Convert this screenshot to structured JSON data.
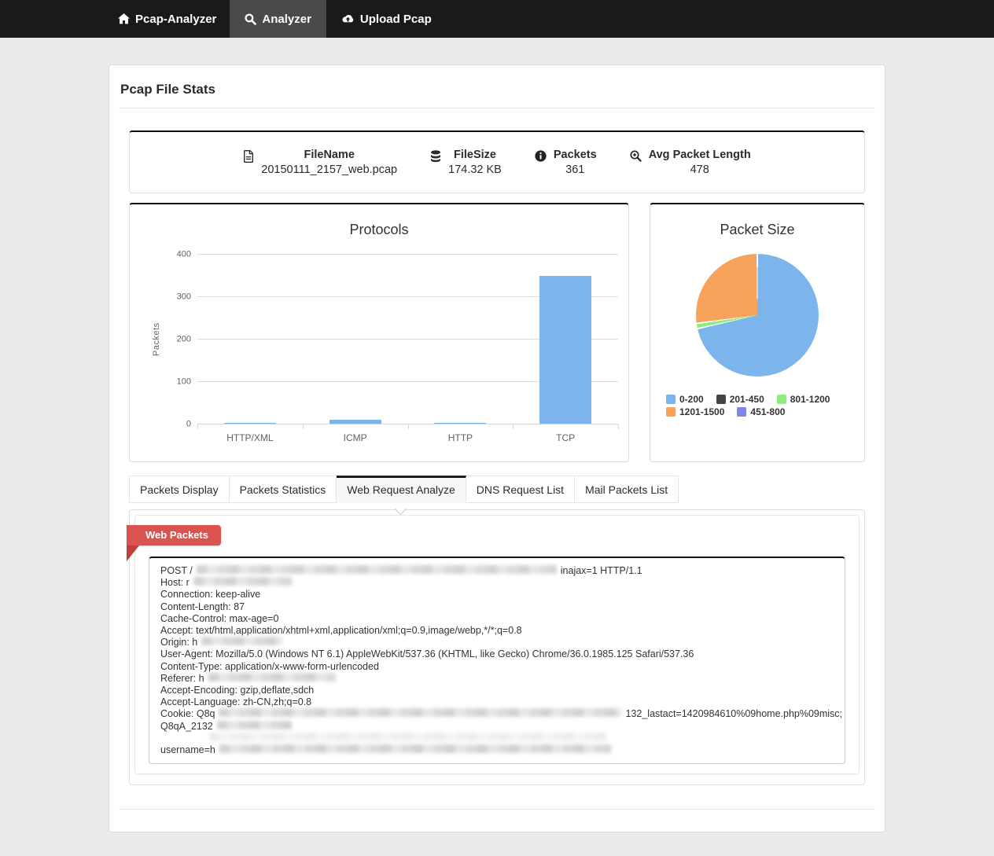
{
  "navbar": {
    "brand": "Pcap-Analyzer",
    "items": [
      {
        "label": "Analyzer",
        "icon": "search-icon",
        "active": true
      },
      {
        "label": "Upload Pcap",
        "icon": "cloud-upload-icon",
        "active": false
      }
    ]
  },
  "page": {
    "title": "Pcap File Stats"
  },
  "file_stats": [
    {
      "icon": "file-icon",
      "label": "FileName",
      "value": "20150111_2157_web.pcap"
    },
    {
      "icon": "database-icon",
      "label": "FileSize",
      "value": "174.32 KB"
    },
    {
      "icon": "info-icon",
      "label": "Packets",
      "value": "361"
    },
    {
      "icon": "zoom-in-icon",
      "label": "Avg Packet Length",
      "value": "478"
    }
  ],
  "chart_data": [
    {
      "type": "bar",
      "title": "Protocols",
      "categories": [
        "HTTP/XML",
        "ICMP",
        "HTTP",
        "TCP"
      ],
      "values": [
        1,
        9,
        2,
        349
      ],
      "xlabel": "",
      "ylabel": "Packets",
      "ylim": [
        0,
        400
      ],
      "yticks": [
        0,
        100,
        200,
        300,
        400
      ],
      "grid": true,
      "legend": false,
      "bar_color": "#7cb5ec"
    },
    {
      "type": "pie",
      "title": "Packet Size",
      "labels": [
        "0-200",
        "201-450",
        "801-1200",
        "1201-1500",
        "451-800"
      ],
      "values": [
        258,
        0,
        5,
        98,
        0
      ],
      "colors": [
        "#7cb5ec",
        "#434348",
        "#90ed7d",
        "#f7a35c",
        "#8085e9"
      ],
      "legend_position": "bottom"
    }
  ],
  "tabs": [
    {
      "label": "Packets Display",
      "active": false
    },
    {
      "label": "Packets Statistics",
      "active": false
    },
    {
      "label": "Web Request Analyze",
      "active": true
    },
    {
      "label": "DNS Request List",
      "active": false
    },
    {
      "label": "Mail Packets List",
      "active": false
    }
  ],
  "web_packets": {
    "ribbon_label": "Web Packets",
    "lines": [
      [
        {
          "t": "POST /"
        },
        {
          "b": 458
        },
        {
          "t": "inajax=1 HTTP/1.1"
        }
      ],
      [
        {
          "t": "Host: r"
        },
        {
          "b": 125
        }
      ],
      [
        {
          "t": "Connection: keep-alive"
        }
      ],
      [
        {
          "t": "Content-Length: 87"
        }
      ],
      [
        {
          "t": "Cache-Control: max-age=0"
        }
      ],
      [
        {
          "t": "Accept: text/html,application/xhtml+xml,application/xml;q=0.9,image/webp,*/*;q=0.8"
        }
      ],
      [
        {
          "t": "Origin: h"
        },
        {
          "b": 103
        }
      ],
      [
        {
          "t": "User-Agent: Mozilla/5.0 (Windows NT 6.1) AppleWebKit/537.36 (KHTML, like Gecko) Chrome/36.0.1985.125 Safari/537.36"
        }
      ],
      [
        {
          "t": "Content-Type: application/x-www-form-urlencoded"
        }
      ],
      [
        {
          "t": "Referer: h"
        },
        {
          "b": 162
        }
      ],
      [
        {
          "t": "Accept-Encoding: gzip,deflate,sdch"
        }
      ],
      [
        {
          "t": "Accept-Language: zh-CN,zh;q=0.8"
        }
      ],
      [
        {
          "t": "Cookie: Q8q"
        },
        {
          "b": 512
        },
        {
          "t": "132_lastact=1420984610%09home.php%09misc;"
        }
      ],
      [
        {
          "t": "Q8qA_2132"
        },
        {
          "b": 95
        }
      ],
      [
        {
          "b": 505,
          "f": true,
          "ml": 62
        }
      ],
      [
        {
          "t": "username=h"
        },
        {
          "b": 498
        }
      ]
    ]
  }
}
